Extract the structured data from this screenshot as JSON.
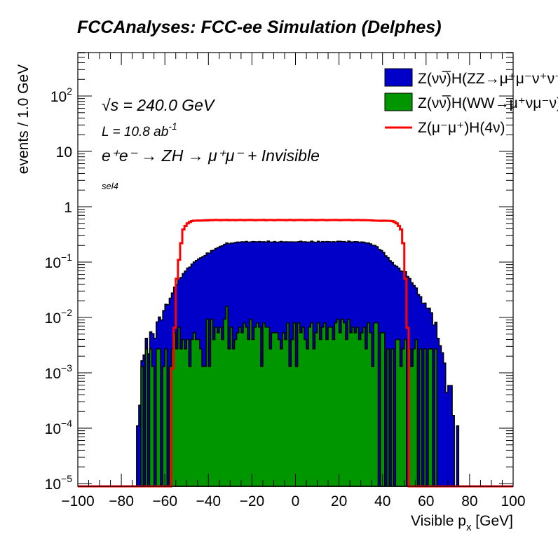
{
  "chart_data": {
    "type": "bar",
    "title": "FCCAnalyses: FCC-ee Simulation (Delphes)",
    "xlabel": "Visible p",
    "xlabel_sub": "x",
    "xlabel_unit": " [GeV]",
    "ylabel": "events / 1.0 GeV",
    "xlim": [
      -100,
      100
    ],
    "ylim": [
      8.9e-06,
      610
    ],
    "yscale": "log",
    "grid": false,
    "legend_position": "top-right",
    "bin_width": 1.0,
    "bin_start": -75,
    "x_ticks": [
      "−100",
      "−80",
      "−60",
      "−40",
      "−20",
      "0",
      "20",
      "40",
      "60",
      "80",
      "100"
    ],
    "x_tick_values": [
      -100,
      -80,
      -60,
      -40,
      -20,
      0,
      20,
      40,
      60,
      80,
      100
    ],
    "y_ticks": [
      {
        "value": 1e-05,
        "base": "10",
        "exp": "−5"
      },
      {
        "value": 0.0001,
        "base": "10",
        "exp": "−4"
      },
      {
        "value": 0.001,
        "base": "10",
        "exp": "−3"
      },
      {
        "value": 0.01,
        "base": "10",
        "exp": "−2"
      },
      {
        "value": 0.1,
        "base": "10",
        "exp": "−1"
      },
      {
        "value": 1,
        "base": "1",
        "exp": ""
      },
      {
        "value": 10,
        "base": "10",
        "exp": ""
      },
      {
        "value": 100,
        "base": "10",
        "exp": "2"
      }
    ],
    "annotations": {
      "sqrt_s": "√s = 240.0 GeV",
      "lumi": "L = 10.8 ab",
      "lumi_exp": "-1",
      "process": "e⁺e⁻ → ZH → μ⁺μ⁻ + Invisible",
      "selection": "sel4"
    },
    "series": [
      {
        "name": "Z(νν̅)H(ZZ→μ⁺μ⁻νν̅)",
        "color": "#0000c8",
        "style": "stacked-fill",
        "values": [
          0,
          0,
          0.00011,
          0.00026,
          0.00035,
          0.0021,
          0.0015,
          0.0022,
          0.0028,
          0.0038,
          0.0042,
          0.0056,
          0.0075,
          0.009,
          0.012,
          0.0146,
          0.017,
          0.021,
          0.025,
          0.03,
          0.037,
          0.043,
          0.05,
          0.058,
          0.066,
          0.074,
          0.08,
          0.088,
          0.095,
          0.103,
          0.11,
          0.117,
          0.124,
          0.13,
          0.137,
          0.144,
          0.152,
          0.16,
          0.17,
          0.178,
          0.186,
          0.194,
          0.2,
          0.206,
          0.21,
          0.214,
          0.218,
          0.222,
          0.225,
          0.222,
          0.228,
          0.224,
          0.23,
          0.226,
          0.222,
          0.232,
          0.227,
          0.224,
          0.229,
          0.231,
          0.226,
          0.223,
          0.233,
          0.228,
          0.225,
          0.23,
          0.222,
          0.227,
          0.234,
          0.226,
          0.229,
          0.224,
          0.231,
          0.228,
          0.223,
          0.23,
          0.226,
          0.233,
          0.225,
          0.229,
          0.227,
          0.224,
          0.231,
          0.228,
          0.222,
          0.23,
          0.226,
          0.229,
          0.224,
          0.232,
          0.227,
          0.225,
          0.23,
          0.223,
          0.229,
          0.233,
          0.226,
          0.228,
          0.224,
          0.231,
          0.227,
          0.225,
          0.229,
          0.226,
          0.223,
          0.226,
          0.222,
          0.218,
          0.214,
          0.208,
          0.2,
          0.192,
          0.182,
          0.17,
          0.157,
          0.144,
          0.13,
          0.118,
          0.106,
          0.096,
          0.088,
          0.08,
          0.074,
          0.068,
          0.065,
          0.063,
          0.055,
          0.048,
          0.041,
          0.035,
          0.03,
          0.026,
          0.021,
          0.018,
          0.0155,
          0.0146,
          0.012,
          0.0095,
          0.0073,
          0.0055,
          0.0042,
          0.0031,
          0.0023,
          0.0015,
          0.00044,
          0.00059,
          0.00059,
          0.00017,
          0,
          0.00011
        ]
      },
      {
        "name": "Z(νν̅)H(WW→μ⁺νμ⁻ν̅)",
        "color": "#009600",
        "style": "stacked-fill",
        "values": [
          0,
          0,
          0,
          0,
          0.0013,
          0,
          0.0027,
          0,
          0.0027,
          0.0013,
          0,
          0.0027,
          0.0027,
          0,
          0.0013,
          0.0027,
          0,
          0.0013,
          0.0027,
          0.0053,
          0.0027,
          0.0067,
          0.0027,
          0.004,
          0.0027,
          0.004,
          0.0013,
          0.004,
          0.0053,
          0.004,
          0.004,
          0.0027,
          0.0013,
          0.0013,
          0.0093,
          0.0013,
          0.0093,
          0.004,
          0.0067,
          0.0053,
          0.0067,
          0.004,
          0.0093,
          0.016,
          0.0027,
          0.0067,
          0.0027,
          0.004,
          0.0053,
          0.0067,
          0.0053,
          0.008,
          0.0067,
          0.004,
          0.0093,
          0.004,
          0.0067,
          0.008,
          0.0067,
          0.0013,
          0.008,
          0.0067,
          0.0067,
          0.0027,
          0.0053,
          0.0053,
          0.0053,
          0.004,
          0.0027,
          0.0053,
          0.004,
          0.008,
          0.0013,
          0.004,
          0.008,
          0.0013,
          0.008,
          0.0053,
          0.0067,
          0.004,
          0.0027,
          0.0067,
          0.008,
          0.0027,
          0.0053,
          0.008,
          0.004,
          0.0067,
          0.008,
          0.004,
          0.0067,
          0.0067,
          0.004,
          0.008,
          0.0093,
          0.0053,
          0.0093,
          0.008,
          0.004,
          0.0093,
          0.0053,
          0.0067,
          0.0053,
          0.0067,
          0.004,
          0.0053,
          0.0067,
          0.0027,
          0.008,
          0.0053,
          0.0013,
          0.008,
          0.008,
          0,
          0.0053,
          0.0053,
          0,
          0.0027,
          0,
          0.0027,
          0,
          0.004,
          0.004,
          0.0013,
          0.0027,
          0.004,
          0,
          0.0027,
          0.0013,
          0.0027,
          0.004,
          0,
          0.0027,
          0,
          0.0027,
          0,
          0.0027,
          0.0027,
          0,
          0.0027,
          0,
          0,
          0,
          0,
          0,
          0,
          0,
          0,
          0,
          0
        ]
      },
      {
        "name": "Z(μ⁻μ⁺)H(4ν)",
        "color": "#ff0000",
        "style": "line",
        "values": [
          0,
          0,
          0,
          0,
          0,
          0,
          0,
          0,
          0,
          0,
          0,
          0,
          0,
          0,
          0,
          0,
          0,
          0,
          0.0012,
          0.0065,
          0.05,
          0.11,
          0.22,
          0.39,
          0.45,
          0.5,
          0.53,
          0.55,
          0.56,
          0.56,
          0.565,
          0.56,
          0.565,
          0.57,
          0.565,
          0.575,
          0.57,
          0.575,
          0.58,
          0.575,
          0.57,
          0.578,
          0.575,
          0.58,
          0.572,
          0.575,
          0.578,
          0.57,
          0.575,
          0.58,
          0.575,
          0.572,
          0.578,
          0.575,
          0.58,
          0.575,
          0.57,
          0.575,
          0.578,
          0.575,
          0.58,
          0.572,
          0.575,
          0.578,
          0.575,
          0.57,
          0.575,
          0.58,
          0.575,
          0.578,
          0.572,
          0.575,
          0.58,
          0.575,
          0.57,
          0.578,
          0.575,
          0.58,
          0.575,
          0.572,
          0.578,
          0.575,
          0.58,
          0.575,
          0.57,
          0.575,
          0.578,
          0.58,
          0.575,
          0.572,
          0.575,
          0.578,
          0.575,
          0.58,
          0.575,
          0.57,
          0.575,
          0.578,
          0.575,
          0.58,
          0.575,
          0.572,
          0.575,
          0.578,
          0.575,
          0.57,
          0.575,
          0.572,
          0.57,
          0.568,
          0.565,
          0.56,
          0.56,
          0.558,
          0.555,
          0.56,
          0.558,
          0.556,
          0.555,
          0.55,
          0.53,
          0.5,
          0.45,
          0.39,
          0.22,
          0.05,
          0.0065,
          0,
          0,
          0,
          0,
          0,
          0,
          0,
          0,
          0,
          0,
          0,
          0,
          0,
          0,
          0,
          0,
          0,
          0
        ]
      }
    ],
    "legend": [
      {
        "label": "Z(νν̅)H(ZZ→μ⁺μ⁻ν⁺ν⁻)",
        "color": "#0000c8",
        "kind": "box"
      },
      {
        "label": "Z(νν̅)H(WW→μ⁺νμ⁻ν)",
        "color": "#009600",
        "kind": "box"
      },
      {
        "label": "Z(μ⁻μ⁺)H(4ν)",
        "color": "#ff0000",
        "kind": "line"
      }
    ]
  }
}
